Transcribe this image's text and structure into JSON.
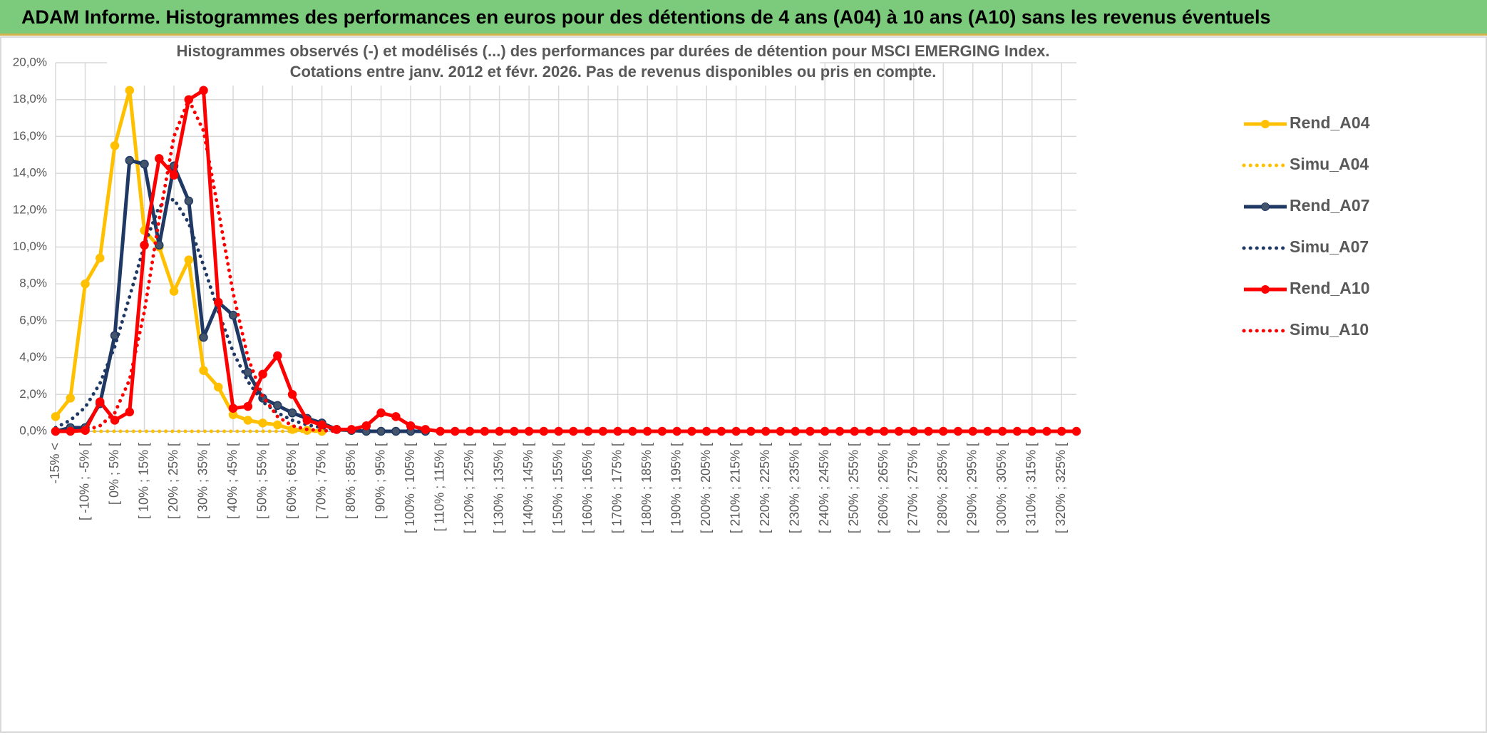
{
  "header": {
    "title": "ADAM Informe. Histogrammes des performances en euros pour des détentions de 4 ans (A04) à 10 ans (A10) sans les revenus éventuels"
  },
  "chart_data": {
    "type": "line",
    "title": [
      "Histogrammes observés (-) et modélisés (...) des performances par durées de détention pour MSCI EMERGING Index.",
      "Cotations entre janv. 2012 et févr. 2026. Pas de revenus disponibles ou pris en compte."
    ],
    "categories": [
      "-15% <",
      null,
      "[ -10% ; -5% [",
      null,
      "[ 0% ; 5% [",
      null,
      "[ 10% ; 15% [",
      null,
      "[ 20% ; 25% [",
      null,
      "[ 30% ; 35% [",
      null,
      "[ 40% ; 45% [",
      null,
      "[ 50% ; 55% [",
      null,
      "[ 60% ; 65% [",
      null,
      "[ 70% ; 75% [",
      null,
      "[ 80% ; 85% [",
      null,
      "[ 90% ; 95% [",
      null,
      "[ 100% ; 105% [",
      null,
      "[ 110% ; 115% [",
      null,
      "[ 120% ; 125% [",
      null,
      "[ 130% ; 135% [",
      null,
      "[ 140% ; 145% [",
      null,
      "[ 150% ; 155% [",
      null,
      "[ 160% ; 165% [",
      null,
      "[ 170% ; 175% [",
      null,
      "[ 180% ; 185% [",
      null,
      "[ 190% ; 195% [",
      null,
      "[ 200% ; 205% [",
      null,
      "[ 210% ; 215% [",
      null,
      "[ 220% ; 225% [",
      null,
      "[ 230% ; 235% [",
      null,
      "[ 240% ; 245% [",
      null,
      "[ 250% ; 255% [",
      null,
      "[ 260% ; 265% [",
      null,
      "[ 270% ; 275% [",
      null,
      "[ 280% ; 285% [",
      null,
      "[ 290% ; 295% [",
      null,
      "[ 300% ; 305% [",
      null,
      "[ 310% ; 315% [",
      null,
      "[ 320% ; 325% [",
      null
    ],
    "series": [
      {
        "name": "Rend_A04",
        "color": "#ffc000",
        "dash": "solid",
        "marker": true,
        "values": [
          0.8,
          1.8,
          8.0,
          9.4,
          15.5,
          18.5,
          10.9,
          10.0,
          7.6,
          9.3,
          3.3,
          2.4,
          0.9,
          0.6,
          0.45,
          0.35,
          0.1,
          0.05,
          0,
          null,
          null,
          null,
          null,
          null,
          null,
          null,
          null,
          null,
          null,
          null,
          null,
          null,
          null,
          null,
          null,
          null,
          null,
          null,
          null,
          null,
          null,
          null,
          null,
          null,
          null,
          null,
          null,
          null,
          null,
          null,
          null,
          null,
          null,
          null,
          null,
          null,
          null,
          null,
          null,
          null,
          null,
          null,
          null,
          null,
          null,
          null,
          null,
          null,
          null,
          null
        ]
      },
      {
        "name": "Simu_A04",
        "color": "#ffc000",
        "dash": "dotted",
        "marker": false,
        "values": [
          0,
          0,
          0,
          0,
          0,
          0,
          0,
          0,
          0,
          0,
          0,
          0,
          0,
          0,
          0,
          0,
          0,
          0,
          0,
          null,
          null,
          null,
          null,
          null,
          null,
          null,
          null,
          null,
          null,
          null,
          null,
          null,
          null,
          null,
          null,
          null,
          null,
          null,
          null,
          null,
          null,
          null,
          null,
          null,
          null,
          null,
          null,
          null,
          null,
          null,
          null,
          null,
          null,
          null,
          null,
          null,
          null,
          null,
          null,
          null,
          null,
          null,
          null,
          null,
          null,
          null,
          null,
          null,
          null,
          null
        ]
      },
      {
        "name": "Rend_A07",
        "color": "#1f3864",
        "dash": "solid",
        "marker": true,
        "values": [
          0,
          0.2,
          0.2,
          1.5,
          5.2,
          14.7,
          14.5,
          10.1,
          14.4,
          12.5,
          5.1,
          7.0,
          6.3,
          3.2,
          1.8,
          1.4,
          1.0,
          0.7,
          0.45,
          0.1,
          0.05,
          0,
          0,
          0,
          0,
          0,
          null,
          null,
          null,
          null,
          null,
          null,
          null,
          null,
          null,
          null,
          null,
          null,
          null,
          null,
          null,
          null,
          null,
          null,
          null,
          null,
          null,
          null,
          null,
          null,
          null,
          null,
          null,
          null,
          null,
          null,
          null,
          null,
          null,
          null,
          null,
          null,
          null,
          null,
          null,
          null,
          null,
          null,
          null,
          null
        ]
      },
      {
        "name": "Simu_A07",
        "color": "#1f3864",
        "dash": "dotted",
        "marker": false,
        "values": [
          0.2,
          0.6,
          1.3,
          2.6,
          4.6,
          7.3,
          10.1,
          12.2,
          12.6,
          11.3,
          9.0,
          6.5,
          4.3,
          2.7,
          1.6,
          1.0,
          0.6,
          0.35,
          0.2,
          0.1,
          0.05,
          null,
          null,
          null,
          null,
          null,
          null,
          null,
          null,
          null,
          null,
          null,
          null,
          null,
          null,
          null,
          null,
          null,
          null,
          null,
          null,
          null,
          null,
          null,
          null,
          null,
          null,
          null,
          null,
          null,
          null,
          null,
          null,
          null,
          null,
          null,
          null,
          null,
          null,
          null,
          null,
          null,
          null,
          null,
          null,
          null,
          null,
          null,
          null,
          null
        ]
      },
      {
        "name": "Rend_A10",
        "color": "#ff0000",
        "dash": "solid",
        "marker": true,
        "values": [
          0,
          0,
          0.05,
          1.6,
          0.6,
          1.05,
          10.1,
          14.8,
          13.9,
          18.0,
          18.5,
          7.0,
          1.25,
          1.35,
          3.1,
          4.1,
          2.0,
          0.6,
          0.35,
          0.1,
          0.1,
          0.3,
          1.0,
          0.8,
          0.3,
          0.1,
          0,
          0,
          0,
          0,
          0,
          0,
          0,
          0,
          0,
          0,
          0,
          0,
          0,
          0,
          0,
          0,
          0,
          0,
          0,
          0,
          0,
          0,
          0,
          0,
          0,
          0,
          0,
          0,
          0,
          0,
          0,
          0,
          0,
          0,
          0,
          0,
          0,
          0,
          0,
          0,
          0,
          0,
          0,
          0
        ]
      },
      {
        "name": "Simu_A10",
        "color": "#ff0000",
        "dash": "dotted",
        "marker": false,
        "values": [
          0,
          0,
          0.05,
          0.3,
          1.0,
          2.8,
          6.5,
          11.5,
          16.0,
          18.0,
          16.3,
          12.0,
          7.5,
          4.0,
          1.9,
          0.8,
          0.3,
          0.1,
          0.05,
          0,
          null,
          null,
          null,
          null,
          null,
          null,
          null,
          null,
          null,
          null,
          null,
          null,
          null,
          null,
          null,
          null,
          null,
          null,
          null,
          null,
          null,
          null,
          null,
          null,
          null,
          null,
          null,
          null,
          null,
          null,
          null,
          null,
          null,
          null,
          null,
          null,
          null,
          null,
          null,
          null,
          null,
          null,
          null,
          null,
          null,
          null,
          null,
          null,
          null,
          null
        ]
      }
    ],
    "ylim": [
      0,
      20
    ],
    "yticks": [
      {
        "value": 0,
        "label": "0,0%"
      },
      {
        "value": 2,
        "label": "2,0%"
      },
      {
        "value": 4,
        "label": "4,0%"
      },
      {
        "value": 6,
        "label": "6,0%"
      },
      {
        "value": 8,
        "label": "8,0%"
      },
      {
        "value": 10,
        "label": "10,0%"
      },
      {
        "value": 12,
        "label": "12,0%"
      },
      {
        "value": 14,
        "label": "14,0%"
      },
      {
        "value": 16,
        "label": "16,0%"
      },
      {
        "value": 18,
        "label": "18,0%"
      },
      {
        "value": 20,
        "label": "20,0%"
      }
    ],
    "grid": true,
    "legend": "right"
  }
}
